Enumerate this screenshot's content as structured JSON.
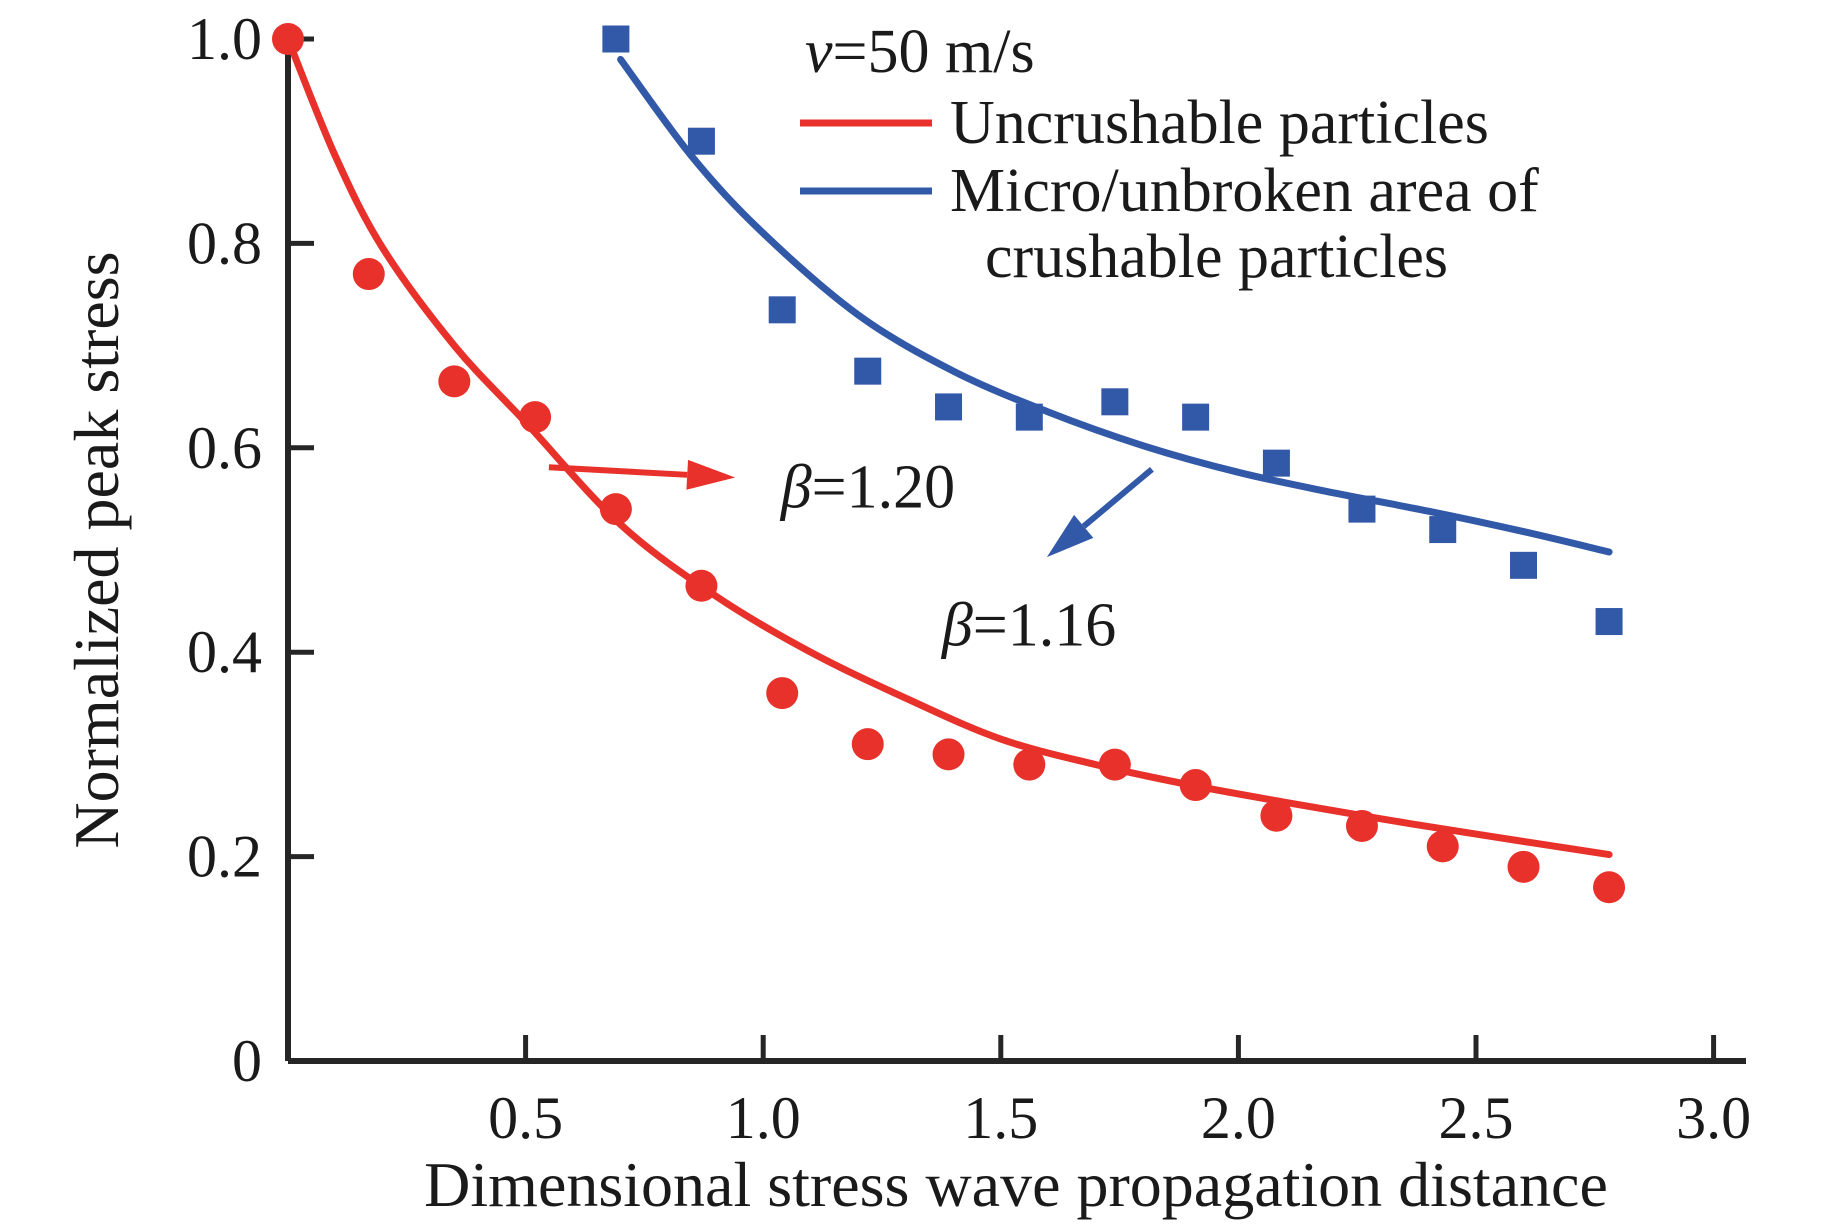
{
  "chart_data": {
    "type": "scatter",
    "velocity_annotation": "v=50 m/s",
    "xlabel": "Dimensional stress wave propagation distance",
    "ylabel": "Normalized peak stress",
    "xlim": [
      0,
      3.07
    ],
    "ylim": [
      0,
      1.02
    ],
    "grid": false,
    "legend_position": "top-right-inside",
    "x_ticks": [
      0.5,
      1.0,
      1.5,
      2.0,
      2.5,
      3.0
    ],
    "x_tick_labels": [
      "0.5",
      "1.0",
      "1.5",
      "2.0",
      "2.5",
      "3.0"
    ],
    "y_ticks": [
      0,
      0.2,
      0.4,
      0.6,
      0.8,
      1.0
    ],
    "y_tick_labels": [
      "0",
      "0.2",
      "0.4",
      "0.6",
      "0.8",
      "1.0"
    ],
    "axis_color": "#262626",
    "series": [
      {
        "name": "Uncrushable particles",
        "legend_lines": [
          "Uncrushable particles"
        ],
        "color": "#e8312a",
        "marker": "circle",
        "beta": "β=1.20",
        "x": [
          0,
          0.17,
          0.35,
          0.52,
          0.69,
          0.87,
          1.04,
          1.22,
          1.39,
          1.56,
          1.74,
          1.91,
          2.08,
          2.26,
          2.43,
          2.6,
          2.78
        ],
        "y": [
          1.0,
          0.77,
          0.665,
          0.63,
          0.54,
          0.465,
          0.36,
          0.31,
          0.3,
          0.29,
          0.29,
          0.27,
          0.24,
          0.23,
          0.21,
          0.19,
          0.17
        ],
        "fit_curve": [
          [
            0,
            1.0
          ],
          [
            0.1,
            0.885
          ],
          [
            0.2,
            0.795
          ],
          [
            0.35,
            0.7
          ],
          [
            0.5,
            0.625
          ],
          [
            0.7,
            0.525
          ],
          [
            0.9,
            0.455
          ],
          [
            1.1,
            0.4
          ],
          [
            1.3,
            0.355
          ],
          [
            1.5,
            0.315
          ],
          [
            1.7,
            0.29
          ],
          [
            1.9,
            0.27
          ],
          [
            2.1,
            0.253
          ],
          [
            2.3,
            0.237
          ],
          [
            2.5,
            0.222
          ],
          [
            2.78,
            0.202
          ]
        ]
      },
      {
        "name": "Micro/unbroken area of crushable particles",
        "legend_lines": [
          "Micro/unbroken area of",
          "crushable particles"
        ],
        "color": "#3259a8",
        "marker": "square",
        "beta": "β=1.16",
        "x": [
          0.69,
          0.87,
          1.04,
          1.22,
          1.39,
          1.56,
          1.74,
          1.91,
          2.08,
          2.26,
          2.43,
          2.6,
          2.78
        ],
        "y": [
          1.0,
          0.9,
          0.735,
          0.675,
          0.64,
          0.63,
          0.645,
          0.63,
          0.585,
          0.54,
          0.52,
          0.485,
          0.43
        ],
        "fit_curve": [
          [
            0.7,
            0.98
          ],
          [
            0.85,
            0.885
          ],
          [
            1.0,
            0.81
          ],
          [
            1.2,
            0.73
          ],
          [
            1.4,
            0.675
          ],
          [
            1.6,
            0.635
          ],
          [
            1.8,
            0.602
          ],
          [
            2.0,
            0.576
          ],
          [
            2.2,
            0.556
          ],
          [
            2.4,
            0.538
          ],
          [
            2.6,
            0.518
          ],
          [
            2.78,
            0.498
          ]
        ]
      }
    ],
    "annotations": [
      {
        "text": "β=1.20",
        "text_color": "#1a1a1a",
        "arrow_color": "#e8312a",
        "text_pos": [
          1.037,
          0.561
        ],
        "arrow_tail": [
          0.549,
          0.581
        ],
        "arrow_head": [
          0.941,
          0.571
        ]
      },
      {
        "text": "β=1.16",
        "text_color": "#1a1a1a",
        "arrow_color": "#3259a8",
        "text_pos": [
          1.376,
          0.426
        ],
        "arrow_tail": [
          1.818,
          0.579
        ],
        "arrow_head": [
          1.597,
          0.493
        ]
      }
    ]
  }
}
